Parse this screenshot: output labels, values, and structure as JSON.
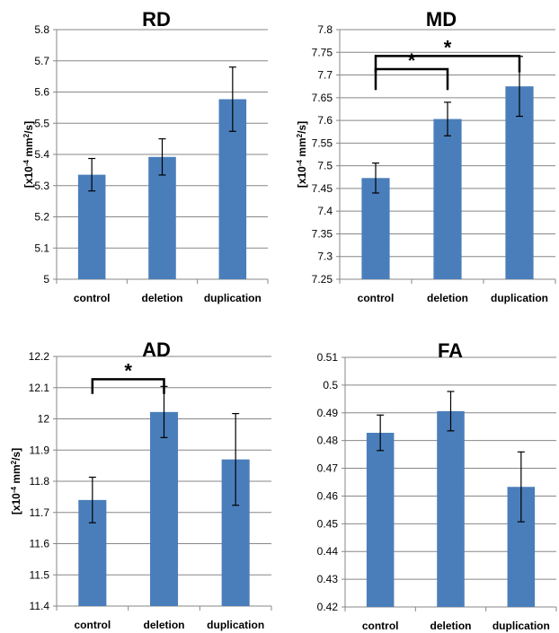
{
  "chart_data": [
    {
      "type": "bar",
      "title": "RD",
      "ylabel": "[x10-4 mm2/s]",
      "ylabel_parts": {
        "prefix": "[x10",
        "exp": "-4",
        "mid": " mm",
        "exp2": "2",
        "suffix": "/s]"
      },
      "categories": [
        "control",
        "deletion",
        "duplication"
      ],
      "values": [
        5.335,
        5.392,
        5.577
      ],
      "errors": [
        0.052,
        0.058,
        0.103
      ],
      "ylim": [
        5,
        5.8
      ],
      "yticks": [
        5,
        5.1,
        5.2,
        5.3,
        5.4,
        5.5,
        5.6,
        5.7,
        5.8
      ],
      "ytick_labels": [
        "5",
        "5.1",
        "5.2",
        "5.3",
        "5.4",
        "5.5",
        "5.6",
        "5.7",
        "5.8"
      ],
      "grid": true,
      "significance": []
    },
    {
      "type": "bar",
      "title": "MD",
      "ylabel": "[x10-4 mm2/s]",
      "ylabel_parts": {
        "prefix": "[x10",
        "exp": "-4",
        "mid": " mm",
        "exp2": "2",
        "suffix": "/s]"
      },
      "categories": [
        "control",
        "deletion",
        "duplication"
      ],
      "values": [
        7.473,
        7.603,
        7.675
      ],
      "errors": [
        0.033,
        0.037,
        0.066
      ],
      "ylim": [
        7.25,
        7.8
      ],
      "yticks": [
        7.25,
        7.3,
        7.35,
        7.4,
        7.45,
        7.5,
        7.55,
        7.6,
        7.65,
        7.7,
        7.75,
        7.8
      ],
      "ytick_labels": [
        "7.25",
        "7.3",
        "7.35",
        "7.4",
        "7.45",
        "7.5",
        "7.55",
        "7.6",
        "7.65",
        "7.7",
        "7.75",
        "7.8"
      ],
      "grid": true,
      "significance": [
        {
          "from": 0,
          "to": 1,
          "level": 7.713,
          "drop": 7.667,
          "label": "*"
        },
        {
          "from": 0,
          "to": 2,
          "level": 7.742,
          "drop": 7.706,
          "label": "*"
        }
      ]
    },
    {
      "type": "bar",
      "title": "AD",
      "ylabel": "[x10-4 mm2/s]",
      "ylabel_parts": {
        "prefix": "[x10",
        "exp": "-4",
        "mid": " mm",
        "exp2": "2",
        "suffix": "/s]"
      },
      "categories": [
        "control",
        "deletion",
        "duplication"
      ],
      "values": [
        11.74,
        12.022,
        11.87
      ],
      "errors": [
        0.073,
        0.082,
        0.147
      ],
      "ylim": [
        11.4,
        12.2
      ],
      "yticks": [
        11.4,
        11.5,
        11.6,
        11.7,
        11.8,
        11.9,
        12,
        12.1,
        12.2
      ],
      "ytick_labels": [
        "11.4",
        "11.5",
        "11.6",
        "11.7",
        "11.8",
        "11.9",
        "12",
        "12.1",
        "12.2"
      ],
      "grid": true,
      "significance": [
        {
          "from": 0,
          "to": 1,
          "level": 12.127,
          "drop": 12.08,
          "label": "*"
        }
      ]
    },
    {
      "type": "bar",
      "title": "FA",
      "ylabel": "",
      "ylabel_parts": null,
      "categories": [
        "control",
        "deletion",
        "duplication"
      ],
      "values": [
        0.4828,
        0.4906,
        0.4633
      ],
      "errors": [
        0.0064,
        0.0071,
        0.0126
      ],
      "ylim": [
        0.42,
        0.51
      ],
      "yticks": [
        0.42,
        0.43,
        0.44,
        0.45,
        0.46,
        0.47,
        0.48,
        0.49,
        0.5,
        0.51
      ],
      "ytick_labels": [
        "0.42",
        "0.43",
        "0.44",
        "0.45",
        "0.46",
        "0.47",
        "0.48",
        "0.49",
        "0.5",
        "0.51"
      ],
      "grid": true,
      "significance": []
    }
  ],
  "colors": {
    "bar": "#4a7ebb",
    "grid": "#878787",
    "error": "#000000"
  }
}
